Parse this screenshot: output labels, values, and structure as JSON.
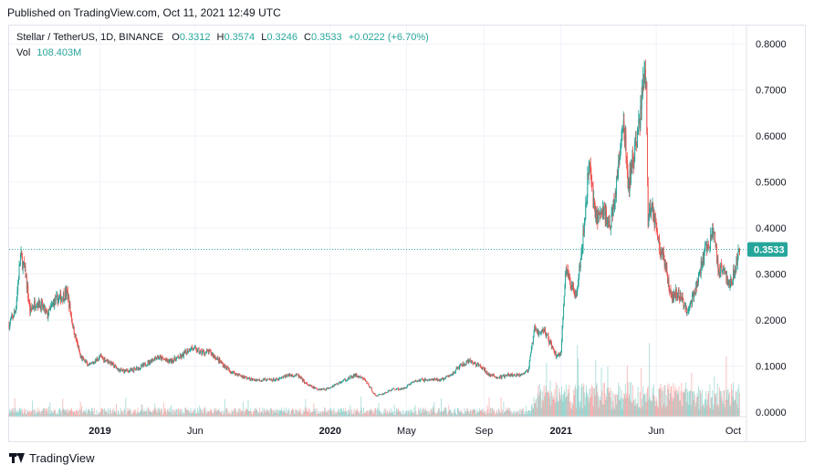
{
  "header": {
    "published": "Published on TradingView.com, Oct 11, 2021 12:49 UTC"
  },
  "legend": {
    "symbol": "Stellar / TetherUS, 1D, BINANCE",
    "open_label": "O",
    "open": "0.3312",
    "high_label": "H",
    "high": "0.3574",
    "low_label": "L",
    "low": "0.3246",
    "close_label": "C",
    "close": "0.3533",
    "change": "+0.0222 (+6.70%)",
    "vol_label": "Vol",
    "vol": "108.403M"
  },
  "footer": {
    "brand": "TradingView",
    "icon": "tradingview-logo-icon"
  },
  "colors": {
    "up": "#26a69a",
    "down": "#ef5350",
    "grid": "#f0f3fa",
    "price_line": "#26a69a"
  },
  "chart_data": {
    "type": "candlestick",
    "title": "Stellar / TetherUS, 1D, BINANCE",
    "xlabel": "",
    "ylabel": "",
    "ylim": [
      -0.01,
      0.84
    ],
    "y_ticks": [
      "0.8000",
      "0.7000",
      "0.6000",
      "0.5000",
      "0.4000",
      "0.3000",
      "0.2000",
      "0.1000",
      "0.0000"
    ],
    "x_ticks": [
      "2019",
      "Jun",
      "2020",
      "May",
      "Sep",
      "2021",
      "Jun",
      "Oct"
    ],
    "x_tick_dates": [
      "2019-01-01",
      "2019-06-01",
      "2020-01-01",
      "2020-05-01",
      "2020-09-01",
      "2021-01-01",
      "2021-06-01",
      "2021-10-01"
    ],
    "last_price": 0.3533,
    "last_price_label": "0.3533",
    "x_range": [
      "2018-08-10",
      "2021-10-22"
    ],
    "price_path": [
      [
        "2018-08-10",
        0.19
      ],
      [
        "2018-08-20",
        0.22
      ],
      [
        "2018-08-28",
        0.34
      ],
      [
        "2018-09-05",
        0.3
      ],
      [
        "2018-09-12",
        0.22
      ],
      [
        "2018-09-22",
        0.24
      ],
      [
        "2018-10-01",
        0.23
      ],
      [
        "2018-10-10",
        0.21
      ],
      [
        "2018-10-20",
        0.24
      ],
      [
        "2018-11-01",
        0.25
      ],
      [
        "2018-11-10",
        0.26
      ],
      [
        "2018-11-20",
        0.18
      ],
      [
        "2018-12-01",
        0.12
      ],
      [
        "2018-12-15",
        0.1
      ],
      [
        "2019-01-01",
        0.12
      ],
      [
        "2019-01-15",
        0.11
      ],
      [
        "2019-02-01",
        0.09
      ],
      [
        "2019-02-20",
        0.09
      ],
      [
        "2019-03-10",
        0.1
      ],
      [
        "2019-04-01",
        0.12
      ],
      [
        "2019-04-20",
        0.11
      ],
      [
        "2019-05-10",
        0.12
      ],
      [
        "2019-05-25",
        0.14
      ],
      [
        "2019-06-10",
        0.13
      ],
      [
        "2019-06-25",
        0.13
      ],
      [
        "2019-07-10",
        0.11
      ],
      [
        "2019-07-25",
        0.09
      ],
      [
        "2019-08-10",
        0.08
      ],
      [
        "2019-08-30",
        0.07
      ],
      [
        "2019-09-20",
        0.07
      ],
      [
        "2019-10-10",
        0.07
      ],
      [
        "2019-10-25",
        0.08
      ],
      [
        "2019-11-10",
        0.08
      ],
      [
        "2019-11-25",
        0.06
      ],
      [
        "2019-12-10",
        0.05
      ],
      [
        "2019-12-25",
        0.05
      ],
      [
        "2020-01-10",
        0.06
      ],
      [
        "2020-01-25",
        0.07
      ],
      [
        "2020-02-10",
        0.08
      ],
      [
        "2020-02-25",
        0.07
      ],
      [
        "2020-03-13",
        0.035
      ],
      [
        "2020-03-25",
        0.04
      ],
      [
        "2020-04-10",
        0.05
      ],
      [
        "2020-04-25",
        0.05
      ],
      [
        "2020-05-10",
        0.065
      ],
      [
        "2020-05-25",
        0.07
      ],
      [
        "2020-06-10",
        0.07
      ],
      [
        "2020-06-25",
        0.07
      ],
      [
        "2020-07-10",
        0.08
      ],
      [
        "2020-07-25",
        0.1
      ],
      [
        "2020-08-10",
        0.11
      ],
      [
        "2020-08-25",
        0.1
      ],
      [
        "2020-09-10",
        0.08
      ],
      [
        "2020-09-25",
        0.075
      ],
      [
        "2020-10-10",
        0.08
      ],
      [
        "2020-10-25",
        0.08
      ],
      [
        "2020-11-10",
        0.09
      ],
      [
        "2020-11-20",
        0.18
      ],
      [
        "2020-11-28",
        0.17
      ],
      [
        "2020-12-05",
        0.18
      ],
      [
        "2020-12-15",
        0.15
      ],
      [
        "2020-12-25",
        0.12
      ],
      [
        "2021-01-01",
        0.13
      ],
      [
        "2021-01-08",
        0.31
      ],
      [
        "2021-01-15",
        0.28
      ],
      [
        "2021-01-25",
        0.26
      ],
      [
        "2021-02-05",
        0.38
      ],
      [
        "2021-02-15",
        0.55
      ],
      [
        "2021-02-22",
        0.45
      ],
      [
        "2021-03-01",
        0.42
      ],
      [
        "2021-03-10",
        0.44
      ],
      [
        "2021-03-20",
        0.4
      ],
      [
        "2021-04-01",
        0.52
      ],
      [
        "2021-04-10",
        0.63
      ],
      [
        "2021-04-18",
        0.49
      ],
      [
        "2021-04-25",
        0.55
      ],
      [
        "2021-05-05",
        0.62
      ],
      [
        "2021-05-12",
        0.75
      ],
      [
        "2021-05-16",
        0.7
      ],
      [
        "2021-05-19",
        0.42
      ],
      [
        "2021-05-25",
        0.45
      ],
      [
        "2021-06-05",
        0.37
      ],
      [
        "2021-06-15",
        0.32
      ],
      [
        "2021-06-25",
        0.25
      ],
      [
        "2021-07-05",
        0.26
      ],
      [
        "2021-07-20",
        0.22
      ],
      [
        "2021-08-01",
        0.26
      ],
      [
        "2021-08-10",
        0.31
      ],
      [
        "2021-08-20",
        0.36
      ],
      [
        "2021-09-01",
        0.39
      ],
      [
        "2021-09-07",
        0.31
      ],
      [
        "2021-09-15",
        0.32
      ],
      [
        "2021-09-25",
        0.27
      ],
      [
        "2021-10-01",
        0.3
      ],
      [
        "2021-10-11",
        0.3533
      ]
    ]
  }
}
